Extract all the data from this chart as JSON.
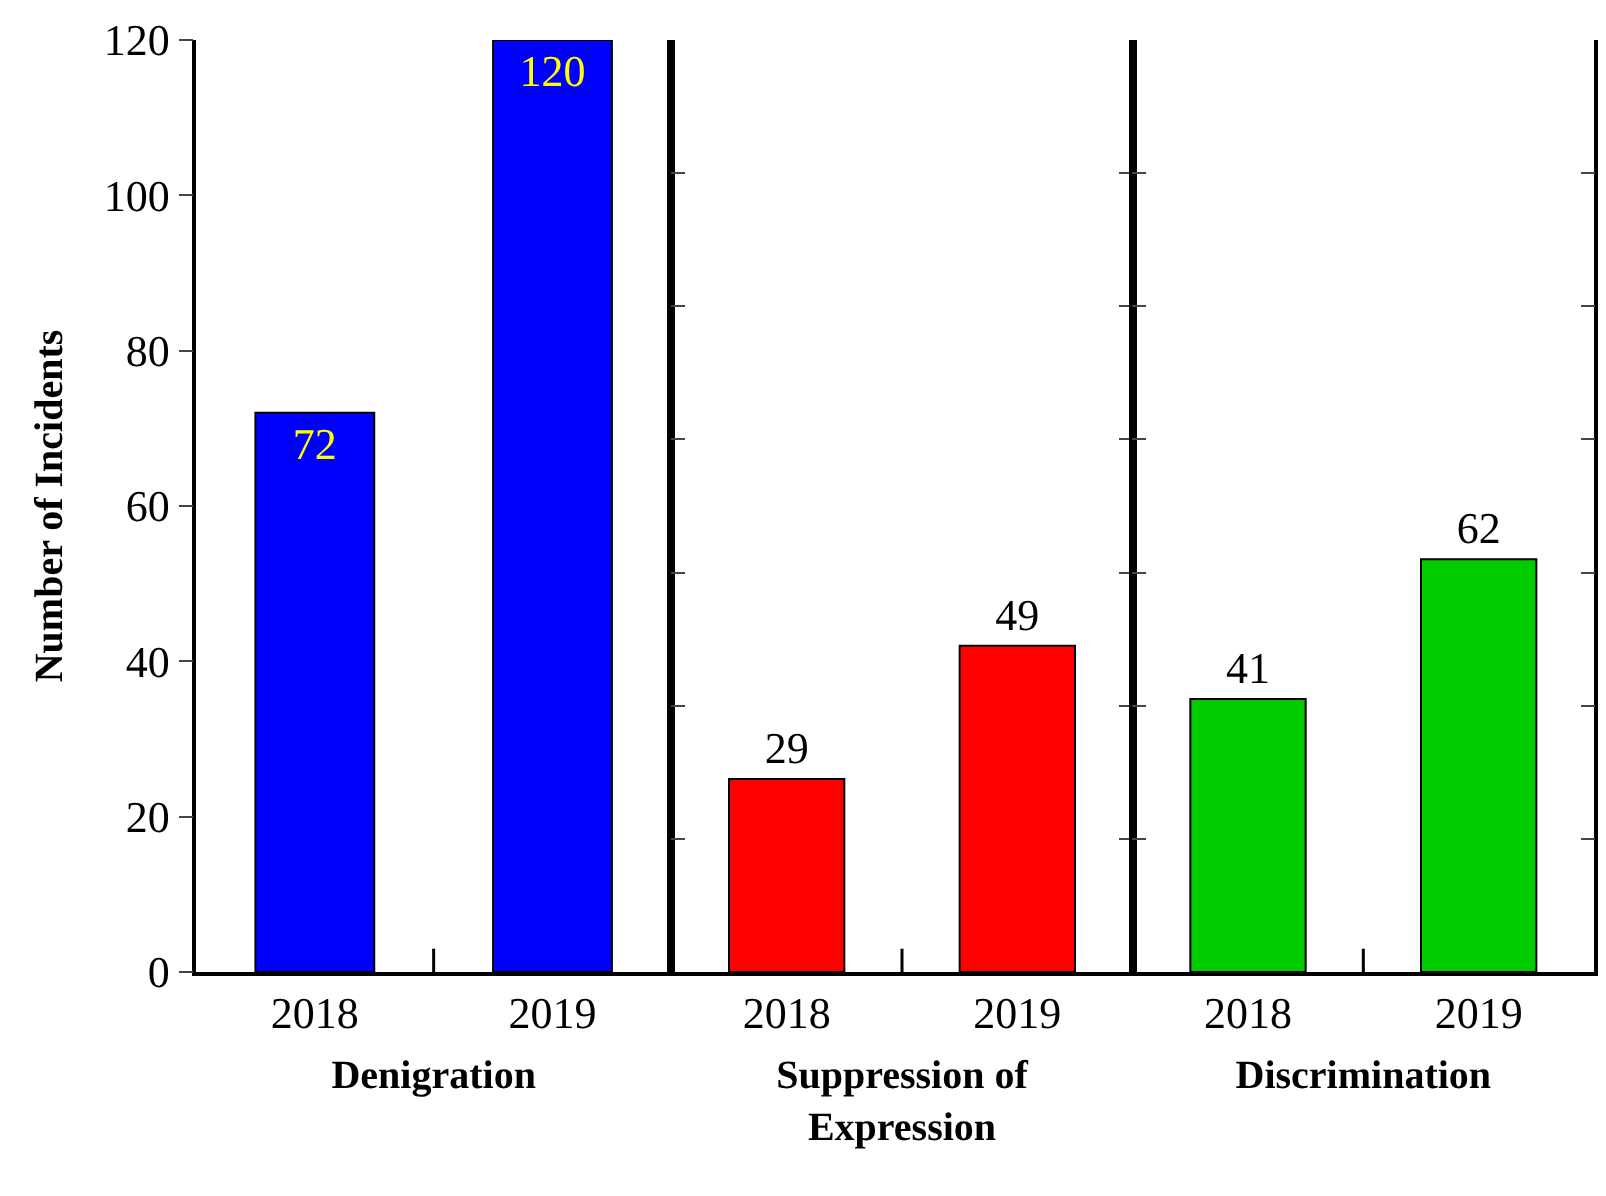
{
  "chart_data": [
    {
      "type": "bar",
      "categories": [
        "2018",
        "2019"
      ],
      "values": [
        72,
        120
      ],
      "color": "#0000ff",
      "xlabel": "Denigration",
      "ylabel": "Number of Incidents",
      "ylim": [
        0,
        120
      ],
      "yticks": [
        0,
        20,
        40,
        60,
        80,
        100,
        120
      ],
      "data_labels": true
    },
    {
      "type": "bar",
      "categories": [
        "2018",
        "2019"
      ],
      "values": [
        29,
        49
      ],
      "color": "#ff0000",
      "xlabel": "Suppression of\nExpression",
      "ylim": [
        0,
        140
      ],
      "yticks": [
        {
          "value": 0,
          "label": null
        },
        {
          "value": 20,
          "label": null
        },
        {
          "value": 40,
          "label": null
        },
        {
          "value": 60,
          "label": null
        },
        {
          "value": 80,
          "label": null
        },
        {
          "value": 100,
          "label": null
        },
        {
          "value": 120,
          "label": null
        }
      ],
      "tick_labels": "x",
      "data_labels": true
    },
    {
      "type": "bar",
      "categories": [
        "2018",
        "2019"
      ],
      "values": [
        41,
        62
      ],
      "color": "#00cc00",
      "xlabel": "Discrimination",
      "ylim": [
        0,
        140
      ],
      "yticks": [
        {
          "value": 0,
          "label": null
        },
        {
          "value": 20,
          "label": null
        },
        {
          "value": 40,
          "label": null
        },
        {
          "value": 60,
          "label": null
        },
        {
          "value": 80,
          "label": null
        },
        {
          "value": 100,
          "label": null
        },
        {
          "value": 120,
          "label": null
        }
      ],
      "tick_labels": "x",
      "data_labels": true
    }
  ]
}
